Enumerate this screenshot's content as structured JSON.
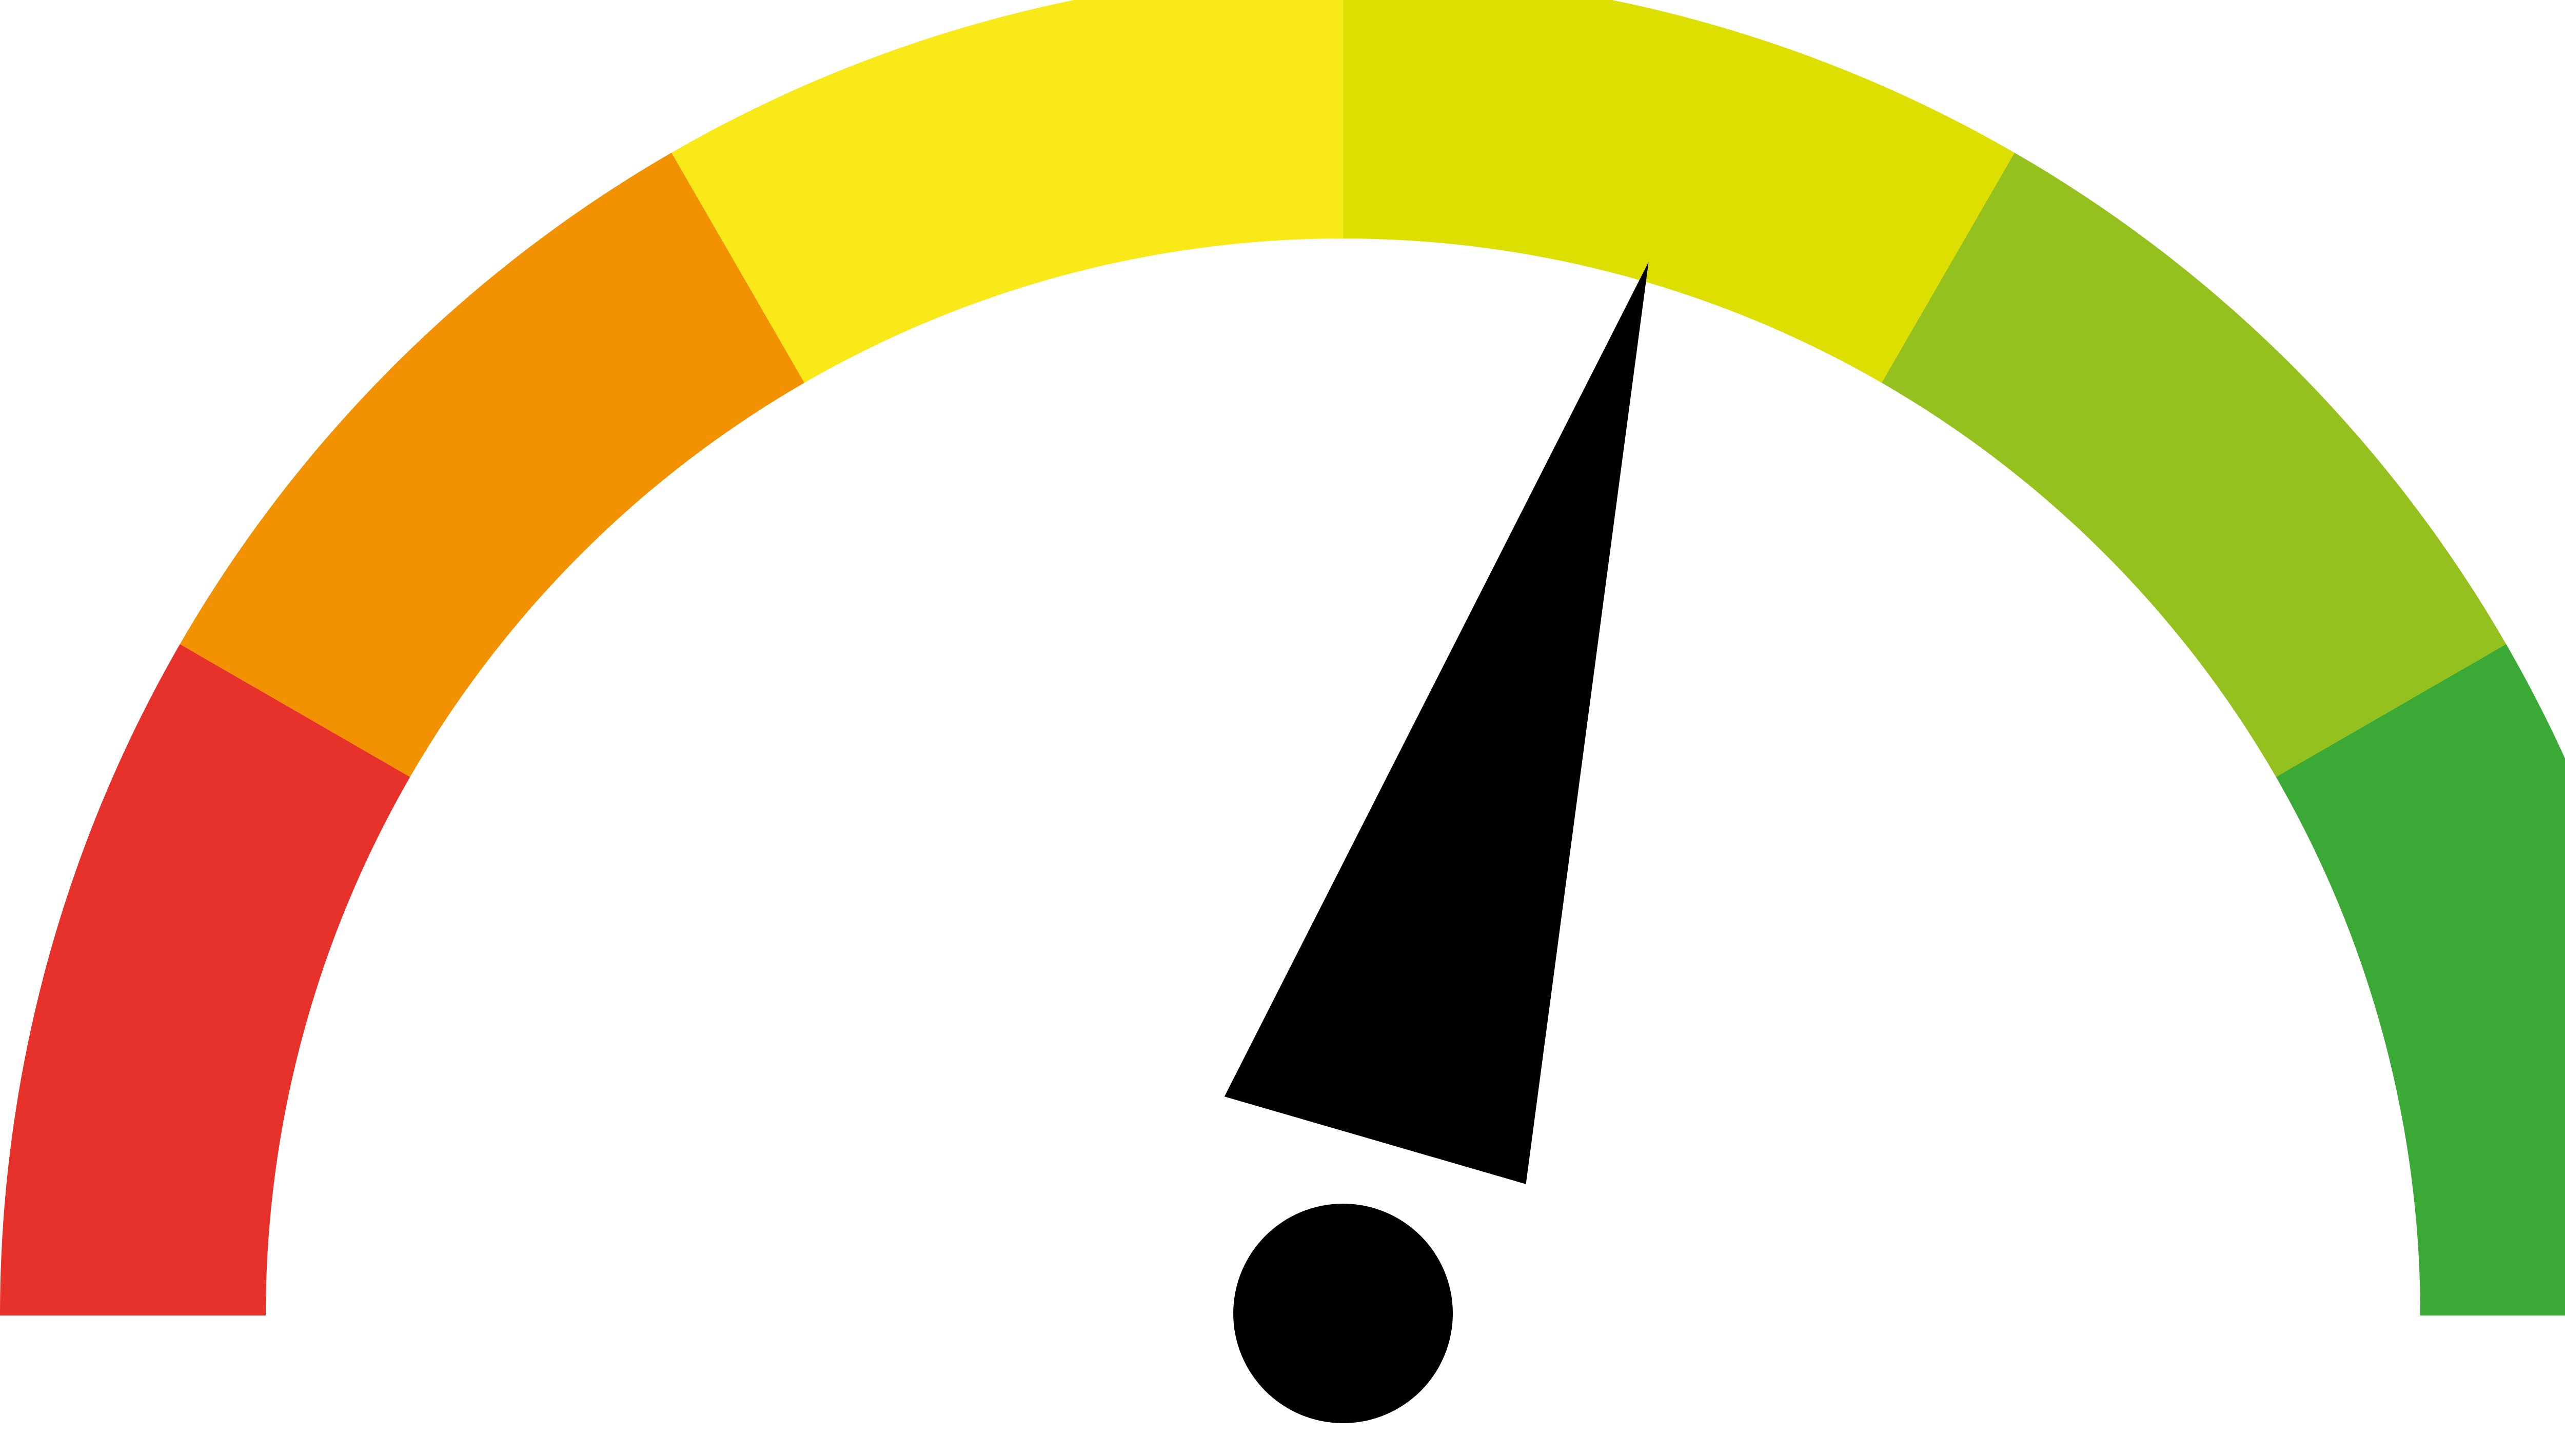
{
  "gauge": {
    "min": 0,
    "max": 100,
    "value": 59,
    "segments": [
      {
        "color": "#e7312b"
      },
      {
        "color": "#f29200"
      },
      {
        "color": "#f9e919"
      },
      {
        "color": "#dcdf00"
      },
      {
        "color": "#95c11f"
      },
      {
        "color": "#3aa935"
      }
    ],
    "needle_color": "#000000",
    "background": "#ffffff"
  }
}
